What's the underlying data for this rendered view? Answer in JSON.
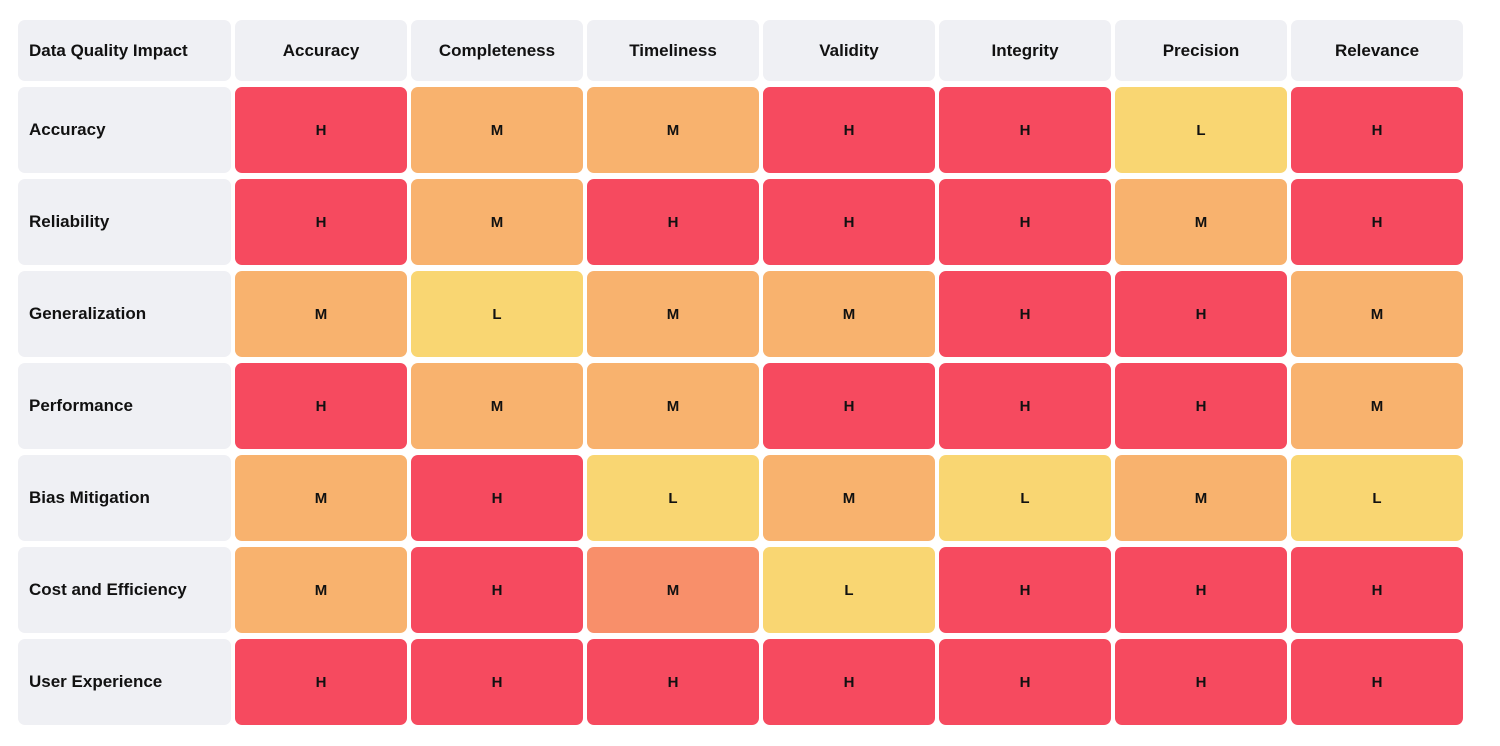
{
  "table": {
    "header": [
      "Data Quality Impact",
      "Accuracy",
      "Completeness",
      "Timeliness",
      "Validity",
      "Integrity",
      "Precision",
      "Relevance"
    ],
    "rows": [
      {
        "label": "Accuracy",
        "cells": [
          "H",
          "M",
          "M",
          "H",
          "H",
          "L",
          "H"
        ],
        "colors": [
          "#f64a5f",
          "#f8b26e",
          "#f8b26e",
          "#f64a5f",
          "#f64a5f",
          "#f9d672",
          "#f64a5f"
        ]
      },
      {
        "label": "Reliability",
        "cells": [
          "H",
          "M",
          "H",
          "H",
          "H",
          "M",
          "H"
        ],
        "colors": [
          "#f64a5f",
          "#f8b26e",
          "#f64a5f",
          "#f64a5f",
          "#f64a5f",
          "#f8b26e",
          "#f64a5f"
        ]
      },
      {
        "label": "Generalization",
        "cells": [
          "M",
          "L",
          "M",
          "M",
          "H",
          "H",
          "M"
        ],
        "colors": [
          "#f8b26e",
          "#f9d672",
          "#f8b26e",
          "#f8b26e",
          "#f64a5f",
          "#f64a5f",
          "#f8b26e"
        ]
      },
      {
        "label": "Performance",
        "cells": [
          "H",
          "M",
          "M",
          "H",
          "H",
          "H",
          "M"
        ],
        "colors": [
          "#f64a5f",
          "#f8b26e",
          "#f8b26e",
          "#f64a5f",
          "#f64a5f",
          "#f64a5f",
          "#f8b26e"
        ]
      },
      {
        "label": "Bias Mitigation",
        "cells": [
          "M",
          "H",
          "L",
          "M",
          "L",
          "M",
          "L"
        ],
        "colors": [
          "#f8b26e",
          "#f64a5f",
          "#f9d672",
          "#f8b26e",
          "#f9d672",
          "#f8b26e",
          "#f9d672"
        ]
      },
      {
        "label": "Cost and Efficiency",
        "cells": [
          "M",
          "H",
          "M",
          "L",
          "H",
          "H",
          "H"
        ],
        "colors": [
          "#f8b26e",
          "#f64a5f",
          "#f88f6a",
          "#f9d672",
          "#f64a5f",
          "#f64a5f",
          "#f64a5f"
        ]
      },
      {
        "label": "User Experience",
        "cells": [
          "H",
          "H",
          "H",
          "H",
          "H",
          "H",
          "H"
        ],
        "colors": [
          "#f64a5f",
          "#f64a5f",
          "#f64a5f",
          "#f64a5f",
          "#f64a5f",
          "#f64a5f",
          "#f64a5f"
        ]
      }
    ]
  }
}
